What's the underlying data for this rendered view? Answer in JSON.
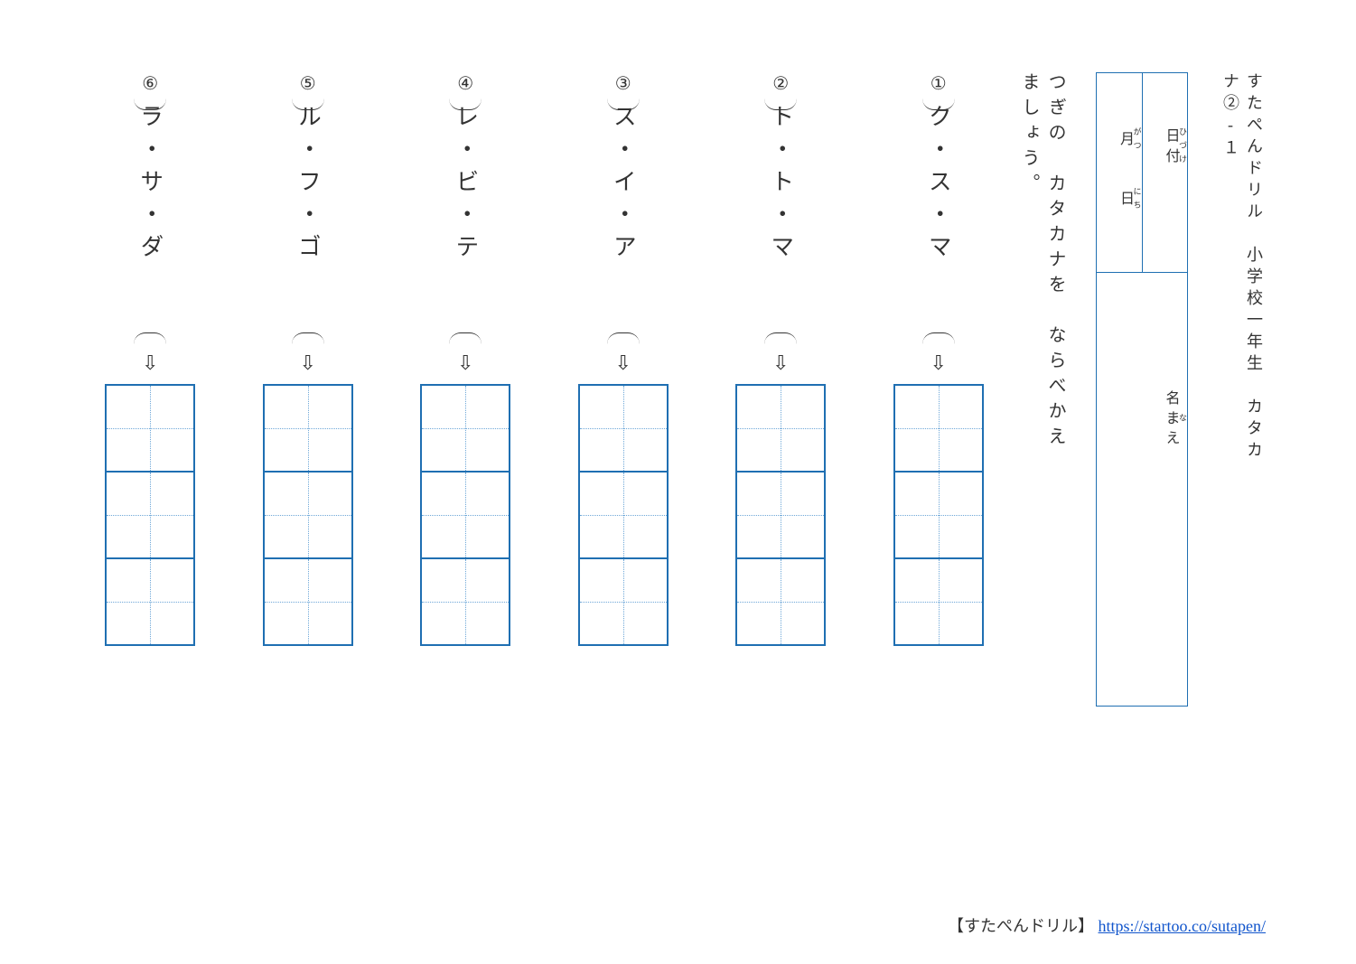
{
  "header": {
    "title": "すたぺんドリル　小学校一年生　カタカナ②-１"
  },
  "infobox": {
    "date_label": "日付",
    "date_label_ruby": "ひづけ",
    "month": "月",
    "month_ruby": "がつ",
    "day": "日",
    "day_ruby": "にち",
    "name_label": "名まえ",
    "name_label_ruby": "な"
  },
  "instruction": "つぎの　カタカナを　ならべかえましょう。",
  "problems": [
    {
      "num": "①",
      "chars": "ク・ス・マ",
      "cells": 3
    },
    {
      "num": "②",
      "chars": "ト・ト・マ",
      "cells": 3
    },
    {
      "num": "③",
      "chars": "ス・イ・ア",
      "cells": 3
    },
    {
      "num": "④",
      "chars": "レ・ビ・テ",
      "cells": 3
    },
    {
      "num": "⑤",
      "chars": "ル・フ・ゴ",
      "cells": 3
    },
    {
      "num": "⑥",
      "chars": "ラ・サ・ダ",
      "cells": 3
    }
  ],
  "arrow_glyph": "⇩",
  "footer": {
    "prefix": "【すたぺんドリル】",
    "link_text": "https://startoo.co/sutapen/",
    "link_href": "https://startoo.co/sutapen/"
  },
  "colors": {
    "border": "#1f6fb2",
    "guide": "#6fa8d8",
    "link": "#1155cc",
    "text": "#333333",
    "background": "#ffffff"
  }
}
